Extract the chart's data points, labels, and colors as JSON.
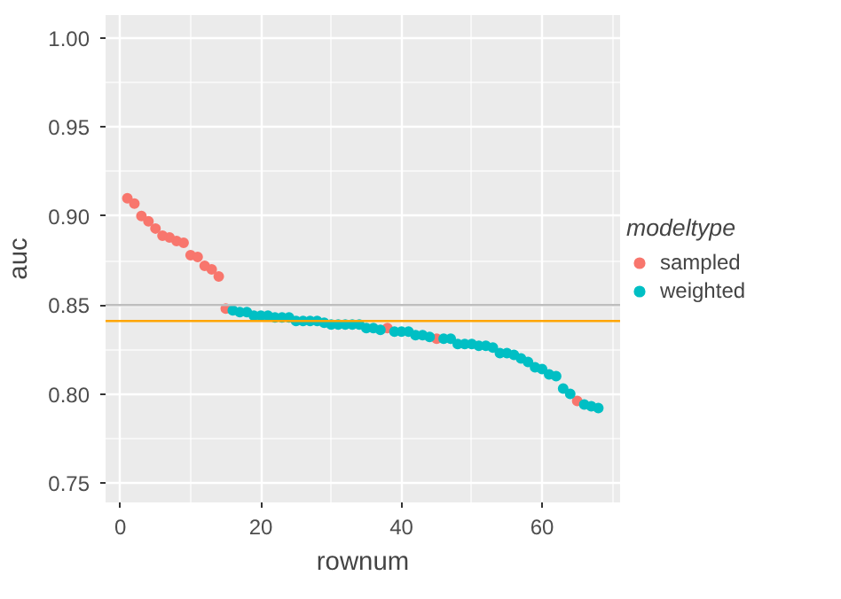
{
  "chart_data": {
    "type": "scatter",
    "xlabel": "rownum",
    "ylabel": "auc",
    "legend_title": "modeltype",
    "xlim": [
      -2.1,
      71.1
    ],
    "ylim": [
      0.739,
      1.013
    ],
    "xticks": [
      0,
      20,
      40,
      60
    ],
    "yticks": [
      0.75,
      {
        "value": 0.8,
        "label": "0.80"
      },
      0.85,
      {
        "value": 0.9,
        "label": "0.90"
      },
      0.95,
      {
        "value": 1.0,
        "label": "1.00"
      }
    ],
    "grid": true,
    "legend": "right",
    "marker": "circle",
    "ref_lines": [
      {
        "axis": "y",
        "value": 0.85,
        "color": "#bebebe"
      },
      {
        "axis": "y",
        "value": 0.841,
        "color": "#ffa500"
      }
    ],
    "series": [
      {
        "name": "sampled",
        "color": "#f8766d",
        "x": [
          1,
          2,
          3,
          4,
          5,
          6,
          7,
          8,
          9,
          10,
          11,
          12,
          13,
          14,
          15,
          38,
          45,
          65
        ],
        "values": [
          0.91,
          0.907,
          0.9,
          0.897,
          0.893,
          0.889,
          0.888,
          0.886,
          0.885,
          0.878,
          0.877,
          0.872,
          0.87,
          0.866,
          0.848,
          0.837,
          0.831,
          0.796
        ]
      },
      {
        "name": "weighted",
        "color": "#00bfc4",
        "x": [
          16,
          17,
          18,
          19,
          20,
          21,
          22,
          23,
          24,
          25,
          26,
          27,
          28,
          29,
          30,
          31,
          32,
          33,
          34,
          35,
          36,
          37,
          39,
          40,
          41,
          42,
          43,
          44,
          46,
          47,
          48,
          49,
          50,
          51,
          52,
          53,
          54,
          55,
          56,
          57,
          58,
          59,
          60,
          61,
          62,
          63,
          64,
          66,
          67,
          68
        ],
        "values": [
          0.847,
          0.846,
          0.846,
          0.844,
          0.844,
          0.844,
          0.843,
          0.843,
          0.843,
          0.841,
          0.841,
          0.841,
          0.841,
          0.84,
          0.839,
          0.839,
          0.839,
          0.839,
          0.839,
          0.837,
          0.837,
          0.836,
          0.835,
          0.835,
          0.835,
          0.833,
          0.833,
          0.832,
          0.831,
          0.831,
          0.828,
          0.828,
          0.828,
          0.827,
          0.827,
          0.826,
          0.823,
          0.823,
          0.822,
          0.82,
          0.818,
          0.815,
          0.814,
          0.811,
          0.81,
          0.803,
          0.8,
          0.794,
          0.793,
          0.792
        ]
      }
    ]
  }
}
